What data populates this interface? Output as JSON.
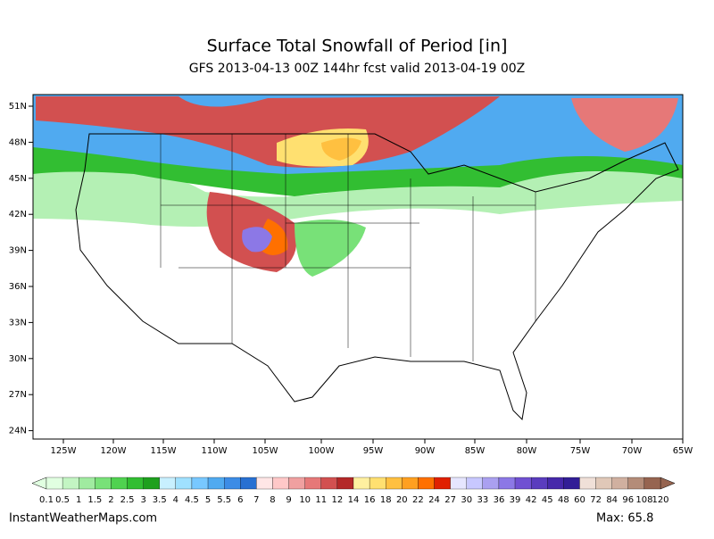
{
  "header": {
    "title": "Surface Total Snowfall of Period [in]",
    "subtitle": "GFS 2013-04-13 00Z 144hr fcst valid 2013-04-19 00Z"
  },
  "map": {
    "lat_labels": [
      "51N",
      "48N",
      "45N",
      "42N",
      "39N",
      "36N",
      "33N",
      "30N",
      "27N",
      "24N"
    ],
    "lon_labels": [
      "125W",
      "120W",
      "115W",
      "110W",
      "105W",
      "100W",
      "95W",
      "90W",
      "85W",
      "80W",
      "75W",
      "70W",
      "65W"
    ]
  },
  "colorbar": {
    "labels": [
      "0.1",
      "0.5",
      "1",
      "1.5",
      "2",
      "2.5",
      "3",
      "3.5",
      "4",
      "4.5",
      "5",
      "5.5",
      "6",
      "7",
      "8",
      "9",
      "10",
      "11",
      "12",
      "14",
      "16",
      "18",
      "20",
      "22",
      "24",
      "27",
      "30",
      "33",
      "36",
      "39",
      "42",
      "45",
      "48",
      "60",
      "72",
      "84",
      "96",
      "108",
      "120"
    ],
    "colors": [
      "#e1ffe1",
      "#c3f5c3",
      "#a0eba0",
      "#78e178",
      "#50d250",
      "#32be32",
      "#1ea01e",
      "#c8f0ff",
      "#a0e1ff",
      "#78c8ff",
      "#50aaf0",
      "#3c8ce6",
      "#2870d2",
      "#ffe6e6",
      "#ffc8c8",
      "#f0a0a0",
      "#e67878",
      "#d25050",
      "#b42828",
      "#fff0a0",
      "#ffe070",
      "#ffc040",
      "#ffa020",
      "#ff7000",
      "#e02000",
      "#e6e6ff",
      "#c8c8ff",
      "#aaa0f0",
      "#8c78e6",
      "#7050d2",
      "#5a3cbe",
      "#4628aa",
      "#321e96",
      "#f0e0d8",
      "#e0c8b8",
      "#d0b0a0",
      "#b48c78",
      "#966450"
    ]
  },
  "footer": {
    "source": "InstantWeatherMaps.com",
    "max": "Max:  65.8"
  }
}
